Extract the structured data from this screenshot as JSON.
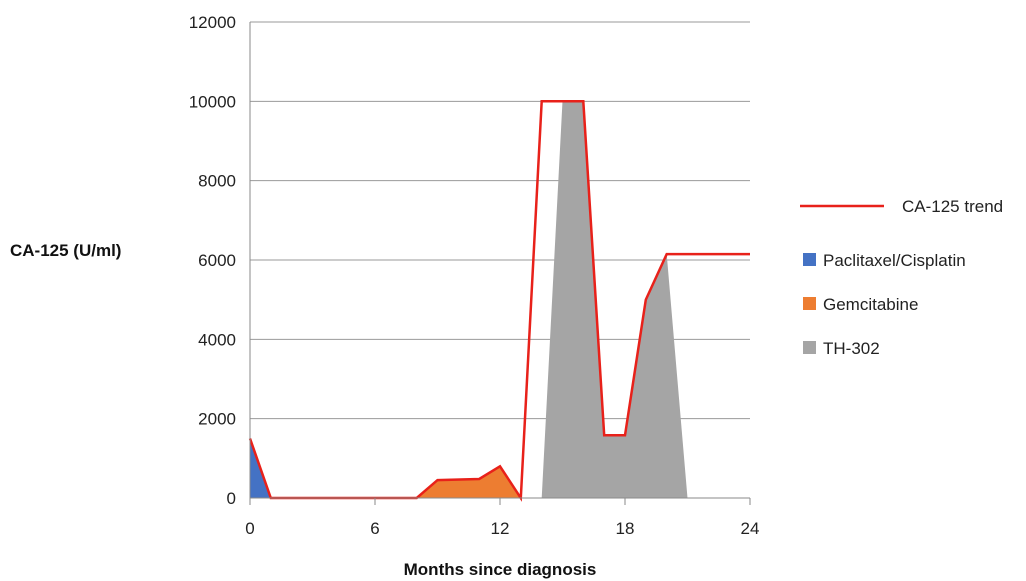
{
  "chart_data": {
    "type": "area",
    "title": "",
    "xlabel": "Months since diagnosis",
    "ylabel": "CA-125 (U/ml)",
    "xlim": [
      0,
      24
    ],
    "ylim": [
      0,
      12000
    ],
    "x_ticks": [
      "0",
      "6",
      "12",
      "18",
      "24"
    ],
    "y_ticks": [
      "0",
      "2000",
      "4000",
      "6000",
      "8000",
      "10000",
      "12000"
    ],
    "grid": "horizontal",
    "legend_position": "right",
    "series": [
      {
        "name": "CA-125 trend",
        "kind": "line",
        "color": "#e8211a",
        "x": [
          0,
          1,
          8,
          9,
          11,
          12,
          13,
          14,
          16,
          17,
          18,
          19,
          20,
          24
        ],
        "y": [
          1500,
          0,
          0,
          450,
          480,
          800,
          0,
          10000,
          10000,
          1580,
          1580,
          5000,
          6150,
          6150
        ]
      },
      {
        "name": "Paclitaxel/Cisplatin",
        "kind": "area",
        "color": "#4472c4",
        "x": [
          0,
          1
        ],
        "y": [
          1500,
          0
        ]
      },
      {
        "name": "Gemcitabine",
        "kind": "area",
        "color": "#ed7d31",
        "x": [
          8,
          9,
          11,
          12,
          13
        ],
        "y": [
          0,
          450,
          480,
          800,
          0
        ]
      },
      {
        "name": "TH-302",
        "kind": "area",
        "color": "#a5a5a5",
        "x": [
          14,
          15,
          16,
          17,
          18,
          19,
          20,
          21
        ],
        "y": [
          0,
          10000,
          10000,
          1580,
          1580,
          5000,
          6150,
          0
        ]
      }
    ]
  }
}
